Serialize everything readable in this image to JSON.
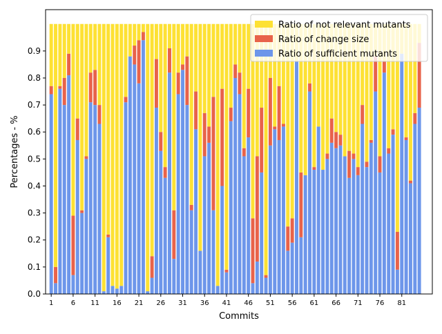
{
  "chart_data": {
    "type": "bar",
    "stacked": true,
    "title": "",
    "xlabel": "Commits",
    "ylabel": "Percentages - %",
    "ylim": [
      0,
      1.0
    ],
    "yticks": [
      0.0,
      0.1,
      0.2,
      0.3,
      0.4,
      0.5,
      0.6,
      0.7,
      0.8,
      0.9
    ],
    "ytick_labels": [
      "0.0",
      "0.1",
      "0.2",
      "0.3",
      "0.4",
      "0.5",
      "0.6",
      "0.7",
      "0.8",
      "0.9"
    ],
    "xticks": [
      1,
      6,
      11,
      16,
      21,
      26,
      31,
      36,
      41,
      46,
      51,
      56,
      61,
      66,
      71,
      76,
      81
    ],
    "xtick_labels": [
      "1",
      "6",
      "11",
      "16",
      "21",
      "26",
      "31",
      "36",
      "41",
      "46",
      "51",
      "56",
      "61",
      "66",
      "71",
      "76",
      "81"
    ],
    "grid": false,
    "legend_position": "top-right",
    "categories": [
      1,
      2,
      3,
      4,
      5,
      6,
      7,
      8,
      9,
      10,
      11,
      12,
      13,
      14,
      15,
      16,
      17,
      18,
      19,
      20,
      21,
      22,
      23,
      24,
      25,
      26,
      27,
      28,
      29,
      30,
      31,
      32,
      33,
      34,
      35,
      36,
      37,
      38,
      39,
      40,
      41,
      42,
      43,
      44,
      45,
      46,
      47,
      48,
      49,
      50,
      51,
      52,
      53,
      54,
      55,
      56,
      57,
      58,
      59,
      60,
      61,
      62,
      63,
      64,
      65,
      66,
      67,
      68,
      69,
      70,
      71,
      72,
      73,
      74,
      75,
      76,
      77,
      78,
      79,
      80,
      81,
      82,
      83,
      84,
      85,
      86,
      87
    ],
    "series": [
      {
        "name": "Ratio of sufficient mutants",
        "color": "#6d96ea",
        "values": [
          0.74,
          0.04,
          0.76,
          0.7,
          0.81,
          0.07,
          0.57,
          0.3,
          0.5,
          0.71,
          0.7,
          0.63,
          0.01,
          0.21,
          0.03,
          0.02,
          0.03,
          0.71,
          0.88,
          0.85,
          0.78,
          0.94,
          0.01,
          0.06,
          0.69,
          0.53,
          0.43,
          0.82,
          0.13,
          0.74,
          0.83,
          0.7,
          0.31,
          0.61,
          0.16,
          0.51,
          0.56,
          0.31,
          0.03,
          0.4,
          0.08,
          0.64,
          0.8,
          0.74,
          0.51,
          0.58,
          0.04,
          0.12,
          0.45,
          0.06,
          0.55,
          0.61,
          0.57,
          0.62,
          0.16,
          0.19,
          0.86,
          0.21,
          0.44,
          0.75,
          0.46,
          0.62,
          0.46,
          0.5,
          0.56,
          0.54,
          0.55,
          0.51,
          0.43,
          0.5,
          0.44,
          0.63,
          0.47,
          0.56,
          0.75,
          0.45,
          0.82,
          0.52,
          0.59,
          0.09,
          0.89,
          0.57,
          0.41,
          0.63,
          0.69,
          0.0,
          0.0
        ]
      },
      {
        "name": "Ratio of change size",
        "color": "#e8634a",
        "values": [
          0.03,
          0.06,
          0.01,
          0.1,
          0.08,
          0.22,
          0.08,
          0.01,
          0.01,
          0.11,
          0.13,
          0.07,
          0.0,
          0.01,
          0.0,
          0.0,
          0.0,
          0.02,
          0.0,
          0.07,
          0.16,
          0.03,
          0.0,
          0.08,
          0.18,
          0.07,
          0.04,
          0.09,
          0.18,
          0.08,
          0.02,
          0.18,
          0.02,
          0.14,
          0.0,
          0.16,
          0.06,
          0.42,
          0.0,
          0.36,
          0.01,
          0.05,
          0.05,
          0.08,
          0.03,
          0.18,
          0.24,
          0.39,
          0.24,
          0.01,
          0.25,
          0.01,
          0.2,
          0.01,
          0.09,
          0.09,
          0.0,
          0.24,
          0.0,
          0.03,
          0.01,
          0.0,
          0.0,
          0.02,
          0.09,
          0.06,
          0.04,
          0.0,
          0.1,
          0.02,
          0.03,
          0.07,
          0.02,
          0.01,
          0.13,
          0.06,
          0.04,
          0.02,
          0.02,
          0.14,
          0.0,
          0.01,
          0.01,
          0.04,
          0.24,
          0.0,
          0.0
        ]
      },
      {
        "name": "Ratio of not relevant mutants",
        "color": "#fde134",
        "values": [
          0.23,
          0.9,
          0.23,
          0.2,
          0.11,
          0.71,
          0.35,
          0.69,
          0.49,
          0.18,
          0.17,
          0.3,
          0.99,
          0.78,
          0.97,
          0.98,
          0.97,
          0.27,
          0.12,
          0.08,
          0.06,
          0.03,
          0.99,
          0.86,
          0.13,
          0.4,
          0.53,
          0.09,
          0.69,
          0.18,
          0.15,
          0.12,
          0.67,
          0.25,
          0.84,
          0.33,
          0.38,
          0.27,
          0.97,
          0.24,
          0.91,
          0.31,
          0.15,
          0.18,
          0.46,
          0.24,
          0.72,
          0.49,
          0.31,
          0.93,
          0.2,
          0.38,
          0.23,
          0.37,
          0.75,
          0.72,
          0.14,
          0.55,
          0.56,
          0.22,
          0.53,
          0.38,
          0.54,
          0.48,
          0.35,
          0.4,
          0.41,
          0.49,
          0.47,
          0.48,
          0.53,
          0.3,
          0.51,
          0.43,
          0.12,
          0.49,
          0.14,
          0.46,
          0.39,
          0.77,
          0.11,
          0.42,
          0.58,
          0.33,
          0.07,
          0.0,
          0.0
        ]
      }
    ]
  }
}
